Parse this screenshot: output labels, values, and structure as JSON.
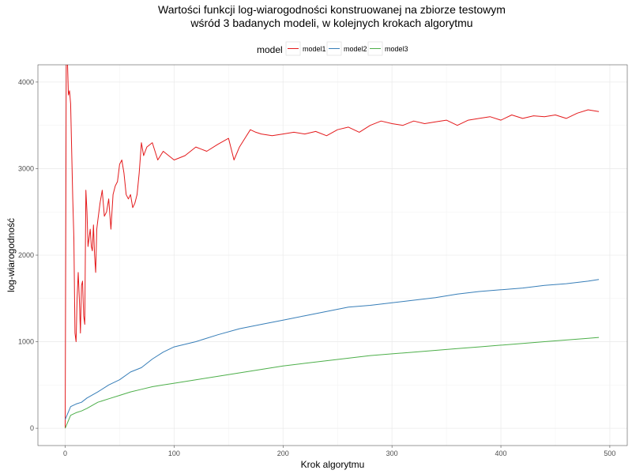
{
  "chart_data": {
    "type": "line",
    "title": [
      "Wartości funkcji log-wiarogodności konstruowanej na zbiorze testowym",
      "wśród 3 badanych modeli, w kolejnych krokach algorytmu"
    ],
    "xlabel": "Krok algorytmu",
    "ylabel": "log-wiarogodność",
    "xlim": [
      -25,
      516
    ],
    "ylim": [
      -200,
      4200
    ],
    "x_ticks": [
      0,
      100,
      200,
      300,
      400,
      500
    ],
    "y_ticks": [
      0,
      1000,
      2000,
      3000,
      4000
    ],
    "grid": true,
    "legend": {
      "title": "model",
      "position": "top"
    },
    "series": [
      {
        "name": "model1",
        "color": "#e41a1c",
        "x": [
          0,
          1,
          2,
          3,
          4,
          5,
          7,
          8,
          9,
          10,
          11,
          12,
          13,
          14,
          15,
          16,
          17,
          18,
          19,
          20,
          21,
          22,
          23,
          24,
          25,
          26,
          27,
          28,
          29,
          30,
          32,
          34,
          36,
          38,
          40,
          42,
          44,
          46,
          48,
          50,
          52,
          54,
          56,
          58,
          60,
          62,
          64,
          66,
          68,
          70,
          72,
          75,
          80,
          85,
          90,
          95,
          100,
          110,
          120,
          130,
          140,
          150,
          155,
          160,
          165,
          170,
          175,
          180,
          190,
          200,
          210,
          220,
          230,
          240,
          250,
          260,
          270,
          280,
          290,
          300,
          310,
          320,
          330,
          340,
          350,
          360,
          370,
          380,
          390,
          400,
          410,
          420,
          430,
          440,
          450,
          460,
          470,
          480,
          490
        ],
        "values": [
          0,
          4200,
          4300,
          3850,
          3900,
          3750,
          2650,
          2200,
          1100,
          1000,
          1500,
          1800,
          1500,
          1100,
          1650,
          1700,
          1300,
          1200,
          2750,
          2500,
          2100,
          2200,
          2300,
          2100,
          2050,
          2350,
          2000,
          1800,
          2300,
          2400,
          2600,
          2750,
          2450,
          2500,
          2650,
          2300,
          2700,
          2800,
          2850,
          3050,
          3100,
          2950,
          2700,
          2650,
          2700,
          2550,
          2600,
          2700,
          2950,
          3300,
          3150,
          3250,
          3300,
          3100,
          3200,
          3150,
          3100,
          3150,
          3250,
          3200,
          3280,
          3350,
          3100,
          3250,
          3350,
          3450,
          3420,
          3400,
          3380,
          3400,
          3420,
          3400,
          3430,
          3380,
          3450,
          3480,
          3420,
          3500,
          3550,
          3520,
          3500,
          3550,
          3520,
          3540,
          3560,
          3500,
          3560,
          3580,
          3600,
          3560,
          3620,
          3580,
          3610,
          3600,
          3620,
          3580,
          3640,
          3680,
          3660
        ]
      },
      {
        "name": "model2",
        "color": "#377eb8",
        "x": [
          0,
          5,
          10,
          15,
          20,
          30,
          40,
          50,
          60,
          70,
          80,
          90,
          100,
          120,
          140,
          160,
          180,
          200,
          220,
          240,
          260,
          280,
          300,
          320,
          340,
          360,
          380,
          400,
          420,
          440,
          460,
          480,
          490
        ],
        "values": [
          100,
          250,
          280,
          300,
          350,
          420,
          500,
          560,
          650,
          700,
          800,
          880,
          940,
          1000,
          1080,
          1150,
          1200,
          1250,
          1300,
          1350,
          1400,
          1420,
          1450,
          1480,
          1510,
          1550,
          1580,
          1600,
          1620,
          1650,
          1670,
          1700,
          1720
        ]
      },
      {
        "name": "model3",
        "color": "#4daf4a",
        "x": [
          0,
          5,
          10,
          15,
          20,
          30,
          40,
          50,
          60,
          70,
          80,
          90,
          100,
          120,
          140,
          160,
          180,
          200,
          220,
          240,
          260,
          280,
          300,
          320,
          340,
          360,
          380,
          400,
          420,
          440,
          460,
          480,
          490
        ],
        "values": [
          0,
          150,
          180,
          200,
          230,
          300,
          340,
          380,
          420,
          450,
          480,
          500,
          520,
          560,
          600,
          640,
          680,
          720,
          750,
          780,
          810,
          840,
          860,
          880,
          900,
          920,
          940,
          960,
          980,
          1000,
          1020,
          1040,
          1050
        ]
      }
    ]
  }
}
